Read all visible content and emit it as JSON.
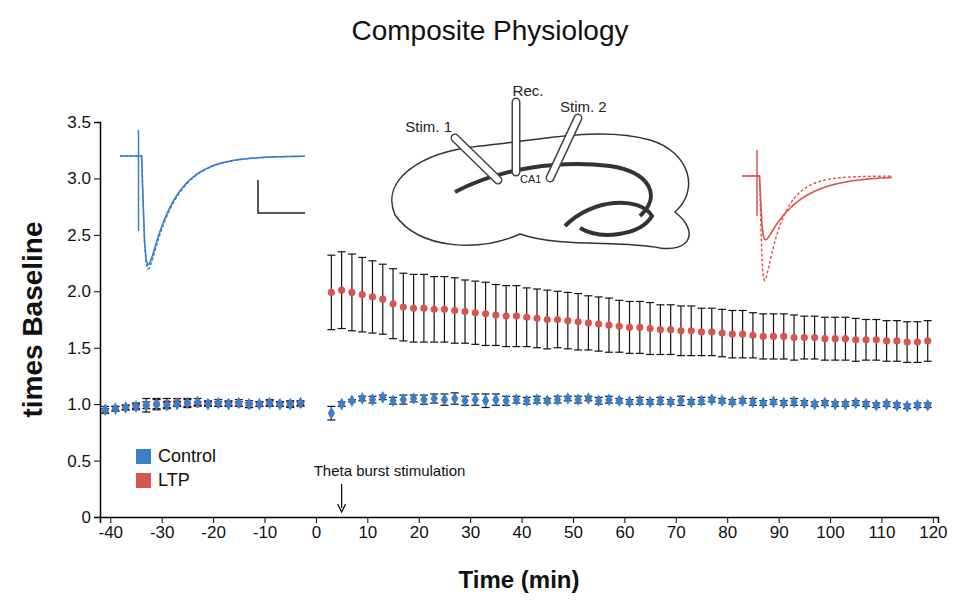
{
  "chart_data": {
    "type": "scatter",
    "title": "Composite Physiology",
    "x_label": "Time (min)",
    "y_label": "times Baseline",
    "xlim": [
      -42,
      121
    ],
    "ylim": [
      0,
      3.5
    ],
    "xticks": [
      -40,
      -30,
      -20,
      -10,
      0,
      10,
      20,
      30,
      40,
      50,
      60,
      70,
      80,
      90,
      100,
      110,
      120
    ],
    "yticks": [
      0,
      0.5,
      {
        "value": 1,
        "label": "1.0"
      },
      1.5,
      {
        "value": 2,
        "label": "2.0"
      },
      2.5,
      {
        "value": 3,
        "label": "3.0"
      },
      3.5
    ],
    "grid": false,
    "legend": "lower left",
    "annotations": [
      {
        "text": "Theta burst stimulation",
        "x": 5
      }
    ],
    "diagram_labels": [
      "Stim. 1",
      "Rec.",
      "Stim. 2",
      "CA1"
    ],
    "x": [
      -41,
      -39,
      -37,
      -35,
      -33,
      -31,
      -29,
      -27,
      -25,
      -23,
      -21,
      -19,
      -17,
      -15,
      -13,
      -11,
      -9,
      -7,
      -5,
      -3,
      3,
      5,
      7,
      9,
      11,
      13,
      15,
      17,
      19,
      21,
      23,
      25,
      27,
      29,
      31,
      33,
      35,
      37,
      39,
      41,
      43,
      45,
      47,
      49,
      51,
      53,
      55,
      57,
      59,
      61,
      63,
      65,
      67,
      69,
      71,
      73,
      75,
      77,
      79,
      81,
      83,
      85,
      87,
      89,
      91,
      93,
      95,
      97,
      99,
      101,
      103,
      105,
      107,
      109,
      111,
      113,
      115,
      117,
      119
    ],
    "series": [
      {
        "name": "Control",
        "color": "#3c7fc9",
        "marker": "diamond",
        "values": [
          0.95,
          0.96,
          0.97,
          0.98,
          0.99,
          1.0,
          0.99,
          1.0,
          1.01,
          1.02,
          1.0,
          1.01,
          1.0,
          1.01,
          1.0,
          1.0,
          1.01,
          1.0,
          1.0,
          1.01,
          0.92,
          1.0,
          1.03,
          1.05,
          1.04,
          1.06,
          1.03,
          1.04,
          1.05,
          1.04,
          1.05,
          1.04,
          1.05,
          1.03,
          1.04,
          1.03,
          1.04,
          1.03,
          1.04,
          1.03,
          1.04,
          1.03,
          1.04,
          1.05,
          1.04,
          1.05,
          1.03,
          1.04,
          1.03,
          1.02,
          1.03,
          1.02,
          1.03,
          1.02,
          1.03,
          1.02,
          1.03,
          1.04,
          1.03,
          1.02,
          1.03,
          1.02,
          1.01,
          1.02,
          1.01,
          1.02,
          1.01,
          1.0,
          1.01,
          1.0,
          1.0,
          1.01,
          1.0,
          0.99,
          1.0,
          0.99,
          0.98,
          0.99,
          0.99
        ],
        "errors": [
          0.03,
          0.02,
          0.02,
          0.02,
          0.06,
          0.05,
          0.03,
          0.02,
          0.04,
          0.03,
          0.02,
          0.03,
          0.02,
          0.03,
          0.03,
          0.02,
          0.03,
          0.02,
          0.03,
          0.02,
          0.06,
          0.02,
          0.01,
          0.02,
          0.03,
          0.02,
          0.03,
          0.04,
          0.03,
          0.04,
          0.04,
          0.05,
          0.05,
          0.04,
          0.05,
          0.06,
          0.05,
          0.04,
          0.03,
          0.03,
          0.03,
          0.02,
          0.03,
          0.02,
          0.03,
          0.02,
          0.03,
          0.03,
          0.02,
          0.02,
          0.03,
          0.02,
          0.03,
          0.02,
          0.04,
          0.02,
          0.03,
          0.02,
          0.02,
          0.02,
          0.02,
          0.03,
          0.02,
          0.02,
          0.02,
          0.03,
          0.02,
          0.02,
          0.02,
          0.02,
          0.02,
          0.02,
          0.02,
          0.02,
          0.02,
          0.02,
          0.02,
          0.02,
          0.02
        ]
      },
      {
        "name": "LTP",
        "color": "#d9534f",
        "marker": "circle",
        "values": [
          0.94,
          0.96,
          0.97,
          0.98,
          0.99,
          1.0,
          1.01,
          1.02,
          1.01,
          1.0,
          1.01,
          1.0,
          1.01,
          1.0,
          0.99,
          1.0,
          1.01,
          1.0,
          1.0,
          1.0,
          1.99,
          2.01,
          1.99,
          1.97,
          1.95,
          1.93,
          1.89,
          1.86,
          1.85,
          1.85,
          1.84,
          1.84,
          1.83,
          1.82,
          1.81,
          1.8,
          1.79,
          1.78,
          1.78,
          1.77,
          1.76,
          1.75,
          1.75,
          1.74,
          1.73,
          1.72,
          1.71,
          1.7,
          1.69,
          1.68,
          1.68,
          1.67,
          1.66,
          1.66,
          1.65,
          1.65,
          1.64,
          1.64,
          1.63,
          1.62,
          1.62,
          1.61,
          1.6,
          1.6,
          1.6,
          1.59,
          1.59,
          1.59,
          1.58,
          1.58,
          1.58,
          1.57,
          1.57,
          1.57,
          1.56,
          1.56,
          1.55,
          1.55,
          1.56
        ],
        "errors": [
          0.02,
          0.02,
          0.02,
          0.03,
          0.03,
          0.04,
          0.04,
          0.03,
          0.03,
          0.02,
          0.02,
          0.02,
          0.02,
          0.02,
          0.02,
          0.02,
          0.02,
          0.02,
          0.02,
          0.02,
          0.33,
          0.34,
          0.34,
          0.33,
          0.32,
          0.31,
          0.31,
          0.3,
          0.3,
          0.3,
          0.29,
          0.29,
          0.29,
          0.28,
          0.28,
          0.28,
          0.27,
          0.27,
          0.27,
          0.26,
          0.26,
          0.26,
          0.25,
          0.25,
          0.25,
          0.24,
          0.24,
          0.24,
          0.23,
          0.23,
          0.23,
          0.23,
          0.22,
          0.22,
          0.22,
          0.22,
          0.21,
          0.21,
          0.21,
          0.21,
          0.21,
          0.2,
          0.2,
          0.2,
          0.2,
          0.2,
          0.19,
          0.19,
          0.19,
          0.19,
          0.19,
          0.19,
          0.18,
          0.18,
          0.18,
          0.18,
          0.18,
          0.18,
          0.18
        ]
      }
    ]
  }
}
